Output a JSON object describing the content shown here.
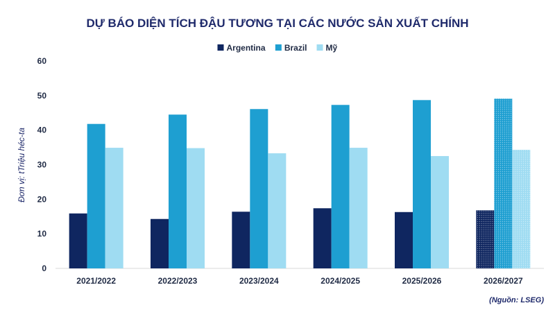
{
  "chart_data": {
    "type": "bar",
    "title": "DỰ BÁO DIỆN TÍCH ĐẬU TƯƠNG TẠI CÁC NƯỚC SẢN XUẤT CHÍNH",
    "ylabel": "Đơn vị: tTriệu héc-ta",
    "xlabel": "",
    "source": "(Nguồn: LSEG)",
    "categories": [
      "2021/2022",
      "2022/2023",
      "2023/2024",
      "2024/2025",
      "2025/2026",
      "2026/2027"
    ],
    "ylim": [
      0,
      60
    ],
    "yticks": [
      0,
      10,
      20,
      30,
      40,
      50,
      60
    ],
    "grid": false,
    "legend_position": "top-center",
    "series": [
      {
        "name": "Argentina",
        "color": "#0f2660",
        "values": [
          15.9,
          14.3,
          16.4,
          17.4,
          16.3,
          16.8
        ]
      },
      {
        "name": "Brazil",
        "color": "#1e9fd1",
        "values": [
          41.8,
          44.5,
          46.1,
          47.3,
          48.7,
          49.1
        ]
      },
      {
        "name": "Mỹ",
        "color": "#9fdcf2",
        "values": [
          34.9,
          34.8,
          33.3,
          34.9,
          32.5,
          34.3
        ]
      }
    ],
    "forecast_pattern_category": "2026/2027"
  }
}
